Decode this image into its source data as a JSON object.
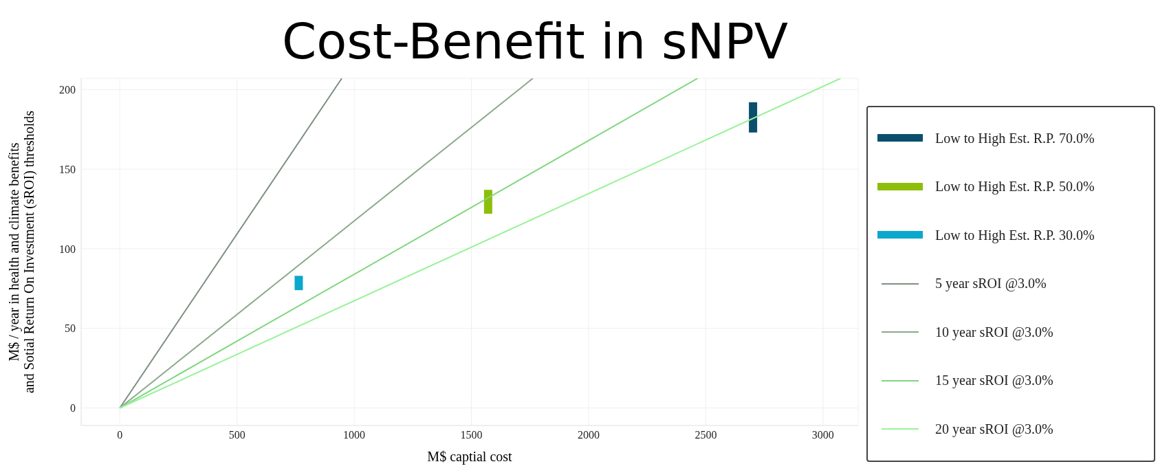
{
  "chart_data": {
    "type": "line",
    "title": "Cost-Benefit in sNPV",
    "xlabel": "M$ captial cost",
    "ylabel": "M$ / year in health and climate benefits\nand Sotial Return On Investment (sROI) thresholds",
    "xlim": [
      -165,
      3150
    ],
    "xticks": [
      0,
      500,
      1000,
      1500,
      2000,
      2500,
      3000
    ],
    "ylim": [
      -11,
      207
    ],
    "yticks": [
      0,
      50,
      100,
      150,
      200
    ],
    "grid": true,
    "legend": "right",
    "marker": "none",
    "line_style": "solid",
    "series": [
      {
        "name": "Low to High Est. R.P. 70.0%",
        "type": "bar",
        "color": "#0b4f6c",
        "x": [
          2700
        ],
        "base": [
          173
        ],
        "values": [
          19
        ]
      },
      {
        "name": "Low to High Est. R.P. 50.0%",
        "type": "bar",
        "color": "#8dbf0a",
        "x": [
          1570
        ],
        "base": [
          122
        ],
        "values": [
          15
        ]
      },
      {
        "name": "Low to High Est. R.P. 30.0%",
        "type": "bar",
        "color": "#0aa8cc",
        "x": [
          762
        ],
        "base": [
          74
        ],
        "values": [
          9
        ]
      },
      {
        "name": "5 year sROI @3.0%",
        "color": "#7d8f80",
        "x": [
          0,
          947
        ],
        "values": [
          0,
          207
        ]
      },
      {
        "name": "10 year sROI @3.0%",
        "color": "#8aa88a",
        "x": [
          0,
          1762
        ],
        "values": [
          0,
          207
        ]
      },
      {
        "name": "15 year sROI @3.0%",
        "color": "#7fd67f",
        "x": [
          0,
          2465
        ],
        "values": [
          0,
          207
        ]
      },
      {
        "name": "20 year sROI @3.0%",
        "color": "#99f299",
        "x": [
          0,
          3075
        ],
        "values": [
          0,
          207
        ]
      }
    ]
  }
}
